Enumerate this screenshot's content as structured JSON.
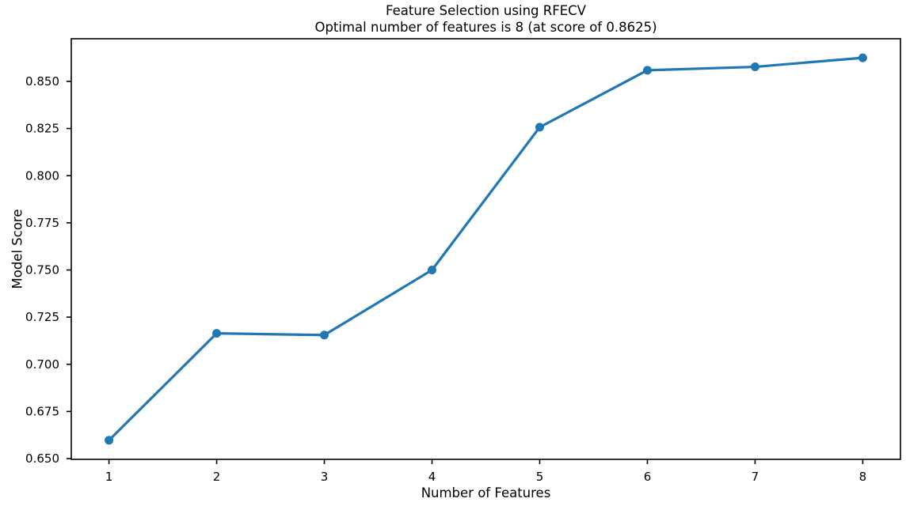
{
  "chart_data": {
    "type": "line",
    "title": "Feature Selection using RFECV",
    "subtitle": "Optimal number of features is 8 (at score of 0.8625)",
    "xlabel": "Number of Features",
    "ylabel": "Model Score",
    "x": [
      1,
      2,
      3,
      4,
      5,
      6,
      7,
      8
    ],
    "y": [
      0.6597,
      0.7164,
      0.7155,
      0.75,
      0.8257,
      0.8559,
      0.8577,
      0.8625
    ],
    "optimal_num_features": 8,
    "optimal_score": 0.8625,
    "xlim": [
      0.65,
      8.35
    ],
    "ylim": [
      0.6496,
      0.8726
    ],
    "xticks": {
      "values": [
        1,
        2,
        3,
        4,
        5,
        6,
        7,
        8
      ],
      "labels": [
        "1",
        "2",
        "3",
        "4",
        "5",
        "6",
        "7",
        "8"
      ]
    },
    "yticks": {
      "values": [
        0.65,
        0.675,
        0.7,
        0.725,
        0.75,
        0.775,
        0.8,
        0.825,
        0.85
      ],
      "labels": [
        "0.650",
        "0.675",
        "0.700",
        "0.725",
        "0.750",
        "0.775",
        "0.800",
        "0.825",
        "0.850"
      ]
    },
    "grid": false,
    "legend": "none",
    "line_color": "#1f77b4",
    "marker": "circle",
    "axes_color": "#000000",
    "background_color": "#ffffff"
  }
}
